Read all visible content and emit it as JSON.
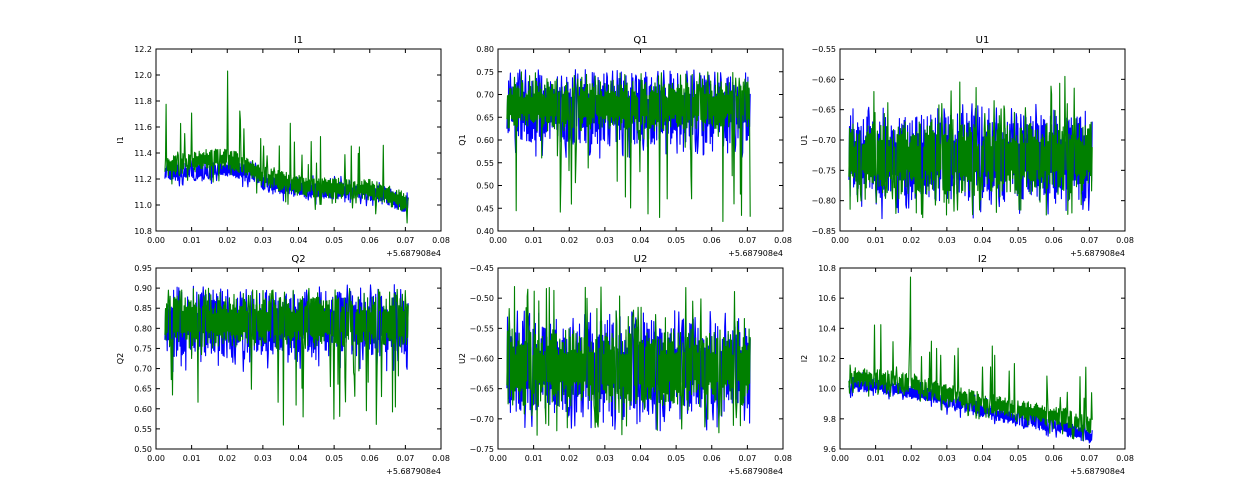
{
  "chart_data": [
    {
      "type": "line",
      "title": "I1",
      "ylabel": "I1",
      "xlim": [
        0.0,
        0.08
      ],
      "ylim": [
        10.8,
        12.2
      ],
      "xticks": [
        "0.00",
        "0.01",
        "0.02",
        "0.03",
        "0.04",
        "0.05",
        "0.06",
        "0.07",
        "0.08"
      ],
      "yticks": [
        "10.8",
        "11.0",
        "11.2",
        "11.4",
        "11.6",
        "11.8",
        "12.0",
        "12.2"
      ],
      "x_offset_label": "+5.687908e4",
      "x_range": [
        0.0025,
        0.0708
      ],
      "series": [
        {
          "color": "#0000ff",
          "shape": "trend",
          "x": [
            0.0025,
            0.01,
            0.015,
            0.02,
            0.025,
            0.03,
            0.04,
            0.05,
            0.06,
            0.0708
          ],
          "base": [
            11.24,
            11.26,
            11.27,
            11.28,
            11.25,
            11.18,
            11.12,
            11.11,
            11.1,
            11.0
          ],
          "band": 0.13,
          "spike_up": 0.05,
          "spike_down": 0.05
        },
        {
          "color": "#008000",
          "shape": "trend",
          "x": [
            0.0025,
            0.01,
            0.015,
            0.02,
            0.025,
            0.03,
            0.04,
            0.05,
            0.06,
            0.0708
          ],
          "base": [
            11.3,
            11.33,
            11.35,
            11.36,
            11.3,
            11.22,
            11.15,
            11.13,
            11.12,
            11.02
          ],
          "band": 0.16,
          "spike_up": 0.4,
          "spike_down": 0.1,
          "peak": {
            "x": 0.0201,
            "y": 12.03
          }
        }
      ]
    },
    {
      "type": "line",
      "title": "Q1",
      "ylabel": "Q1",
      "xlim": [
        0.0,
        0.08
      ],
      "ylim": [
        0.4,
        0.8
      ],
      "xticks": [
        "0.00",
        "0.01",
        "0.02",
        "0.03",
        "0.04",
        "0.05",
        "0.06",
        "0.07",
        "0.08"
      ],
      "yticks": [
        "0.40",
        "0.45",
        "0.50",
        "0.55",
        "0.60",
        "0.65",
        "0.70",
        "0.75",
        "0.80"
      ],
      "x_offset_label": "+5.687908e4",
      "x_range": [
        0.0025,
        0.0708
      ],
      "series": [
        {
          "color": "#0000ff",
          "shape": "band",
          "low": 0.59,
          "high": 0.74,
          "spike_up": 0.015,
          "spike_down": 0.03
        },
        {
          "color": "#008000",
          "shape": "band",
          "low": 0.62,
          "high": 0.73,
          "spike_up": 0.02,
          "spike_down": 0.2
        }
      ]
    },
    {
      "type": "line",
      "title": "U1",
      "ylabel": "U1",
      "xlim": [
        0.0,
        0.08
      ],
      "ylim": [
        -0.85,
        -0.55
      ],
      "xticks": [
        "0.00",
        "0.01",
        "0.02",
        "0.03",
        "0.04",
        "0.05",
        "0.06",
        "0.07",
        "0.08"
      ],
      "yticks": [
        "−0.85",
        "−0.80",
        "−0.75",
        "−0.70",
        "−0.65",
        "−0.60",
        "−0.55"
      ],
      "x_offset_label": "+5.687908e4",
      "x_range": [
        0.0025,
        0.0708
      ],
      "series": [
        {
          "color": "#0000ff",
          "shape": "band",
          "low": -0.8,
          "high": -0.66,
          "spike_up": 0.02,
          "spike_down": 0.03
        },
        {
          "color": "#008000",
          "shape": "band",
          "low": -0.79,
          "high": -0.67,
          "spike_up": 0.08,
          "spike_down": 0.04
        }
      ]
    },
    {
      "type": "line",
      "title": "Q2",
      "ylabel": "Q2",
      "xlim": [
        0.0,
        0.08
      ],
      "ylim": [
        0.5,
        0.95
      ],
      "xticks": [
        "0.00",
        "0.01",
        "0.02",
        "0.03",
        "0.04",
        "0.05",
        "0.06",
        "0.07",
        "0.08"
      ],
      "yticks": [
        "0.50",
        "0.55",
        "0.60",
        "0.65",
        "0.70",
        "0.75",
        "0.80",
        "0.85",
        "0.90",
        "0.95"
      ],
      "x_offset_label": "+5.687908e4",
      "x_range": [
        0.0025,
        0.0708
      ],
      "series": [
        {
          "color": "#0000ff",
          "shape": "band",
          "low": 0.73,
          "high": 0.89,
          "spike_up": 0.02,
          "spike_down": 0.04
        },
        {
          "color": "#008000",
          "shape": "band",
          "low": 0.75,
          "high": 0.88,
          "spike_up": 0.02,
          "spike_down": 0.2
        }
      ]
    },
    {
      "type": "line",
      "title": "U2",
      "ylabel": "U2",
      "xlim": [
        0.0,
        0.08
      ],
      "ylim": [
        -0.75,
        -0.45
      ],
      "xticks": [
        "0.00",
        "0.01",
        "0.02",
        "0.03",
        "0.04",
        "0.05",
        "0.06",
        "0.07",
        "0.08"
      ],
      "yticks": [
        "−0.75",
        "−0.70",
        "−0.65",
        "−0.60",
        "−0.55",
        "−0.50",
        "−0.45"
      ],
      "x_offset_label": "+5.687908e4",
      "x_range": [
        0.0025,
        0.0708
      ],
      "series": [
        {
          "color": "#0000ff",
          "shape": "band",
          "low": -0.69,
          "high": -0.54,
          "spike_up": 0.02,
          "spike_down": 0.03
        },
        {
          "color": "#008000",
          "shape": "band",
          "low": -0.68,
          "high": -0.55,
          "spike_up": 0.07,
          "spike_down": 0.05
        }
      ]
    },
    {
      "type": "line",
      "title": "I2",
      "ylabel": "I2",
      "xlim": [
        0.0,
        0.08
      ],
      "ylim": [
        9.6,
        10.8
      ],
      "xticks": [
        "0.00",
        "0.01",
        "0.02",
        "0.03",
        "0.04",
        "0.05",
        "0.06",
        "0.07",
        "0.08"
      ],
      "yticks": [
        "9.6",
        "9.8",
        "10.0",
        "10.2",
        "10.4",
        "10.6",
        "10.8"
      ],
      "x_offset_label": "+5.687908e4",
      "x_range": [
        0.0025,
        0.0708
      ],
      "series": [
        {
          "color": "#0000ff",
          "shape": "trend",
          "x": [
            0.0025,
            0.01,
            0.015,
            0.02,
            0.03,
            0.04,
            0.05,
            0.06,
            0.0708
          ],
          "base": [
            10.03,
            10.02,
            10.0,
            9.98,
            9.92,
            9.86,
            9.8,
            9.76,
            9.68
          ],
          "band": 0.1,
          "spike_up": 0.04,
          "spike_down": 0.04
        },
        {
          "color": "#008000",
          "shape": "trend",
          "x": [
            0.0025,
            0.01,
            0.015,
            0.02,
            0.03,
            0.04,
            0.05,
            0.06,
            0.0708
          ],
          "base": [
            10.08,
            10.07,
            10.05,
            10.04,
            9.97,
            9.91,
            9.86,
            9.82,
            9.75
          ],
          "band": 0.13,
          "spike_up": 0.33,
          "spike_down": 0.06,
          "peak": {
            "x": 0.0198,
            "y": 10.74
          }
        }
      ]
    }
  ]
}
